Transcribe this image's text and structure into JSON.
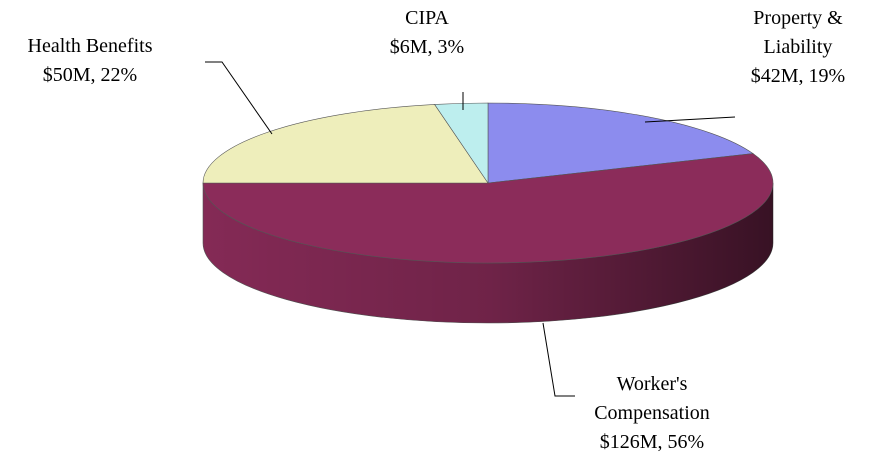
{
  "chart_data": {
    "type": "pie3d",
    "categories": [
      "Property & Liability",
      "Worker's Compensation",
      "Health Benefits",
      "CIPA"
    ],
    "values": [
      19,
      56,
      22,
      3
    ],
    "value_labels": [
      "$42M, 19%",
      "$126M, 56%",
      "$50M, 22%",
      "$6M, 3%"
    ],
    "colors": [
      "#8c8cee",
      "#8b2c5a",
      "#eeeebb",
      "#bdeeee"
    ]
  }
}
